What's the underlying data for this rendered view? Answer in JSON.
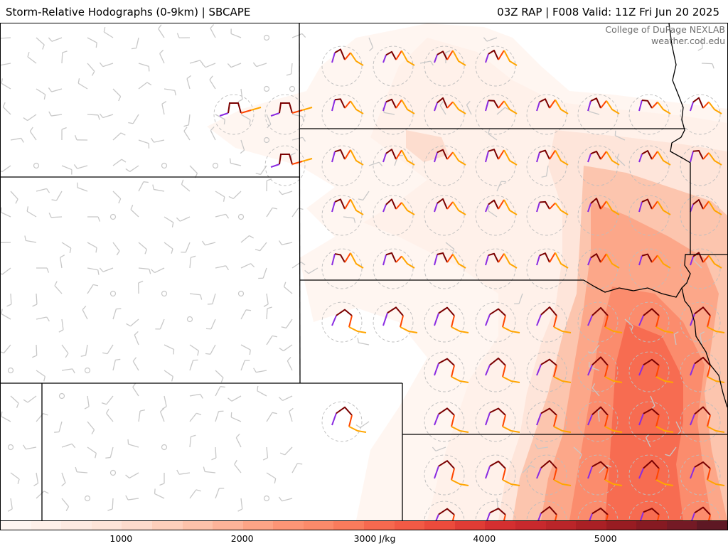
{
  "header": {
    "title": "Storm-Relative Hodographs (0-9km) | SBCAPE",
    "valid": "03Z RAP | F008 Valid: 11Z Fri Jun 20 2025"
  },
  "credit": {
    "org": "College of DuPage NEXLAB",
    "site": "weather.cod.edu"
  },
  "colorbar": {
    "units": "J/kg",
    "range": [
      0,
      6000
    ],
    "labels": [
      "1000",
      "2000",
      "3000 J/kg",
      "4000",
      "5000"
    ],
    "label_values": [
      1000,
      2000,
      3000,
      4000,
      5000
    ],
    "steps": [
      {
        "v": 0,
        "color": "#fff5f0"
      },
      {
        "v": 250,
        "color": "#fff0e9"
      },
      {
        "v": 500,
        "color": "#feeae1"
      },
      {
        "v": 750,
        "color": "#fee4d8"
      },
      {
        "v": 1000,
        "color": "#fddbcc"
      },
      {
        "v": 1250,
        "color": "#fdcfbb"
      },
      {
        "v": 1500,
        "color": "#fcc2aa"
      },
      {
        "v": 1750,
        "color": "#fcb399"
      },
      {
        "v": 2000,
        "color": "#fca486"
      },
      {
        "v": 2250,
        "color": "#fc9576"
      },
      {
        "v": 2500,
        "color": "#fb8a6a"
      },
      {
        "v": 2750,
        "color": "#f97b5c"
      },
      {
        "v": 3000,
        "color": "#f6694f"
      },
      {
        "v": 3250,
        "color": "#f25a45"
      },
      {
        "v": 3500,
        "color": "#ec4b3c"
      },
      {
        "v": 3750,
        "color": "#e03c35"
      },
      {
        "v": 4000,
        "color": "#d42f30"
      },
      {
        "v": 4250,
        "color": "#c8292d"
      },
      {
        "v": 4500,
        "color": "#ba2529"
      },
      {
        "v": 4750,
        "color": "#aa2025"
      },
      {
        "v": 5000,
        "color": "#981c22"
      },
      {
        "v": 5250,
        "color": "#861a22"
      },
      {
        "v": 5500,
        "color": "#741a25"
      },
      {
        "v": 5750,
        "color": "#5e1824"
      }
    ]
  },
  "colors": {
    "hodo_0_1km": "#8a2be2",
    "hodo_1_3km": "#7a0000",
    "hodo_3_6km": "#ff4500",
    "hodo_6_9km": "#ffa500",
    "barbs": "#c8c8c8",
    "borders": "#000000"
  }
}
